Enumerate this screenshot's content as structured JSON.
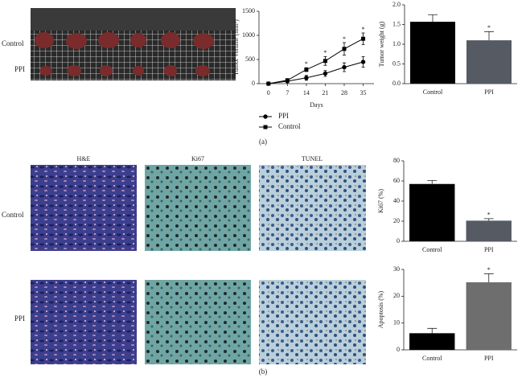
{
  "figure": {
    "panel_labels": [
      "(a)",
      "(b)"
    ],
    "photo_a_rows": [
      "Control",
      "PPI"
    ],
    "photo_b_columns": [
      "H&E",
      "Ki67",
      "TUNEL"
    ],
    "photo_b_rows": [
      "Control",
      "PPI"
    ]
  },
  "chart_data": [
    {
      "type": "line",
      "ylabel": "Tumor volume (mm³)",
      "xlabel": "Days",
      "x": [
        0,
        7,
        14,
        21,
        28,
        35
      ],
      "xlim": [
        -3.5,
        39
      ],
      "xticks": [
        0,
        7,
        14,
        21,
        28,
        35
      ],
      "ylim": [
        0,
        1500
      ],
      "yticks": [
        0,
        500,
        1000,
        1500
      ],
      "series": [
        {
          "name": "PPI",
          "color": "#000000",
          "marker": "circle",
          "values": [
            0,
            50,
            120,
            210,
            340,
            450
          ],
          "errors": [
            0,
            10,
            50,
            60,
            90,
            110
          ]
        },
        {
          "name": "Control",
          "color": "#000000",
          "marker": "square",
          "values": [
            0,
            70,
            290,
            470,
            720,
            930
          ],
          "errors": [
            0,
            15,
            40,
            90,
            130,
            120
          ]
        }
      ],
      "significance": [
        {
          "x": 14,
          "label": "*"
        },
        {
          "x": 21,
          "label": "*"
        },
        {
          "x": 28,
          "label": "*"
        },
        {
          "x": 35,
          "label": "*"
        }
      ],
      "legend": "bottom-left"
    },
    {
      "type": "bar",
      "ylabel": "Tumor weight (g)",
      "categories": [
        "Control",
        "PPI"
      ],
      "values": [
        1.57,
        1.1
      ],
      "errors": [
        0.18,
        0.22
      ],
      "colors": [
        "#000000",
        "#555a63"
      ],
      "ylim": [
        0,
        2
      ],
      "yticks": [
        {
          "value": 0,
          "label": "0.0"
        },
        {
          "value": 0.5,
          "label": "0.5"
        },
        {
          "value": 1,
          "label": "1.0"
        },
        {
          "value": 1.5,
          "label": "1.5"
        },
        {
          "value": 2,
          "label": "2.0"
        }
      ],
      "significance": [
        {
          "category": "PPI",
          "label": "*"
        }
      ]
    },
    {
      "type": "bar",
      "ylabel": "Ki67 (%)",
      "categories": [
        "Control",
        "PPI"
      ],
      "values": [
        57,
        20.5
      ],
      "errors": [
        3.5,
        2
      ],
      "colors": [
        "#000000",
        "#555a63"
      ],
      "ylim": [
        0,
        80
      ],
      "yticks": [
        0,
        20,
        40,
        60,
        80
      ],
      "significance": [
        {
          "category": "PPI",
          "label": "*"
        }
      ]
    },
    {
      "type": "bar",
      "ylabel": "Apoptosis (%)",
      "categories": [
        "Control",
        "PPI"
      ],
      "values": [
        6.2,
        25.2
      ],
      "errors": [
        1.8,
        3.2
      ],
      "colors": [
        "#000000",
        "#6e6e6e"
      ],
      "ylim": [
        0,
        30
      ],
      "yticks": [
        0,
        10,
        20,
        30
      ],
      "significance": [
        {
          "category": "PPI",
          "label": "*"
        }
      ]
    }
  ]
}
